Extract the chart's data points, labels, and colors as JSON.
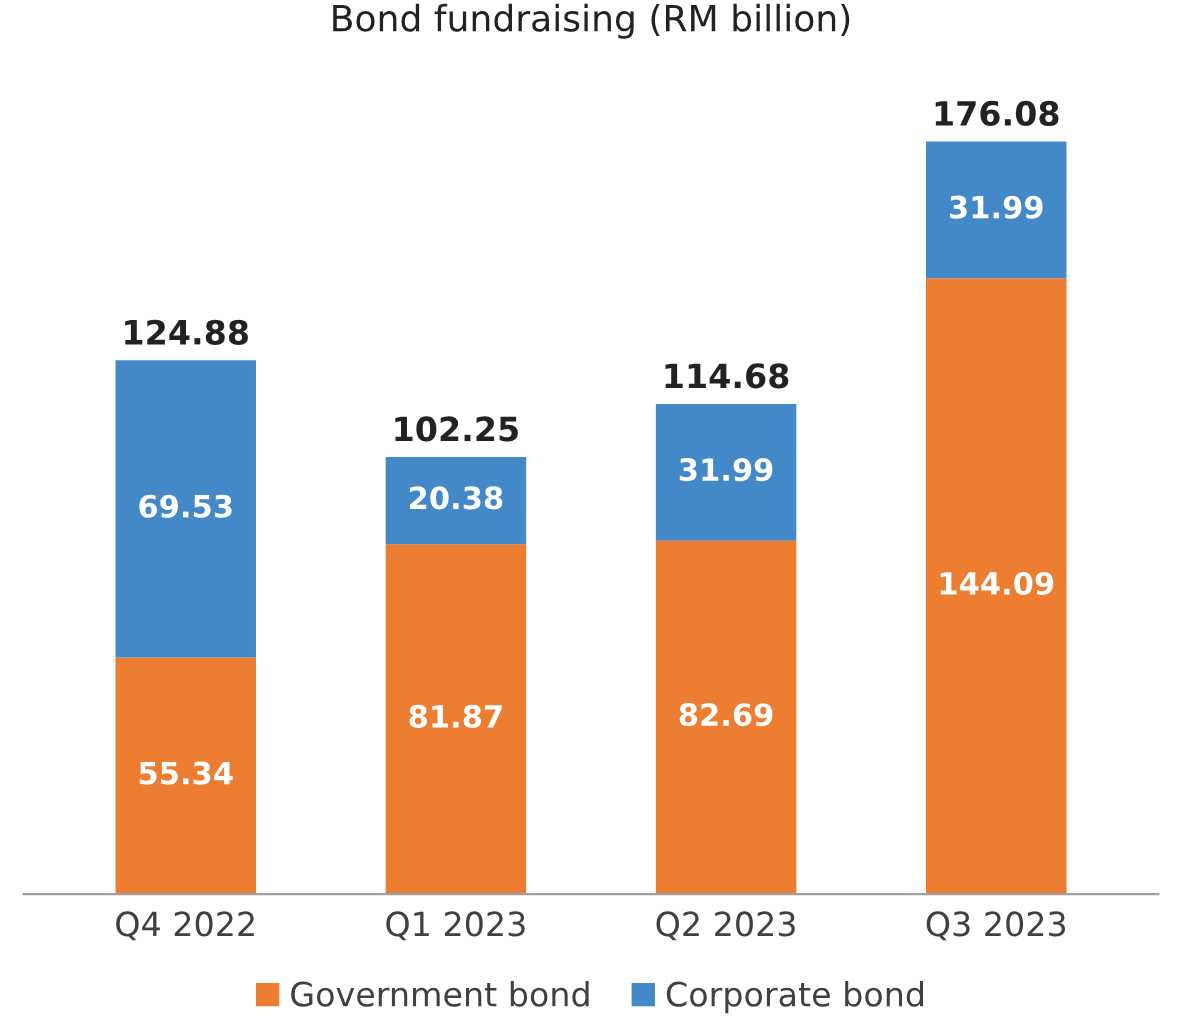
{
  "chart_data": {
    "type": "bar",
    "title": "Bond fundraising (RM billion)",
    "stacked": true,
    "data_labels": true,
    "legend": "bottom",
    "grid": false,
    "categories": [
      "Q4 2022",
      "Q1 2023",
      "Q2 2023",
      "Q3 2023"
    ],
    "series": [
      {
        "name": "Government bond",
        "color": "#ed7d31",
        "values": [
          55.34,
          81.87,
          82.69,
          144.09
        ]
      },
      {
        "name": "Corporate bond",
        "color": "#4389c8",
        "values": [
          69.53,
          20.38,
          31.99,
          31.99
        ]
      }
    ],
    "totals": [
      "124.88",
      "102.25",
      "114.68",
      "176.08"
    ]
  }
}
